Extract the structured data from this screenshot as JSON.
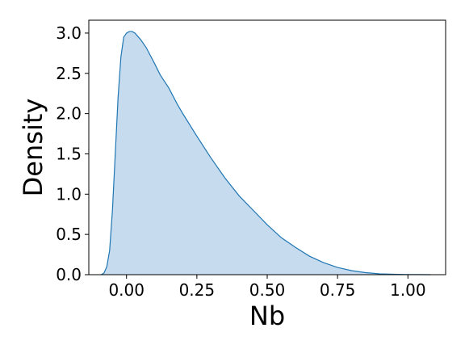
{
  "chart_data": {
    "type": "area",
    "title": "",
    "xlabel": "Nb",
    "ylabel": "Density",
    "xlim": [
      -0.134,
      1.134
    ],
    "ylim": [
      0.0,
      3.16
    ],
    "xticks": [
      0.0,
      0.25,
      0.5,
      0.75,
      1.0
    ],
    "xtick_labels": [
      "0.00",
      "0.25",
      "0.50",
      "0.75",
      "1.00"
    ],
    "yticks": [
      0.0,
      0.5,
      1.0,
      1.5,
      2.0,
      2.5,
      3.0
    ],
    "ytick_labels": [
      "0.0",
      "0.5",
      "1.0",
      "1.5",
      "2.0",
      "2.5",
      "3.0"
    ],
    "grid": false,
    "legend": "none",
    "colors": {
      "line": "#1f77b4",
      "fill": "#c6dbee",
      "axes": "#000000"
    },
    "series": [
      {
        "x": [
          -0.09,
          -0.08,
          -0.07,
          -0.06,
          -0.05,
          -0.04,
          -0.03,
          -0.02,
          -0.01,
          0.0,
          0.01,
          0.02,
          0.03,
          0.04,
          0.05,
          0.07,
          0.1,
          0.12,
          0.15,
          0.18,
          0.2,
          0.25,
          0.3,
          0.35,
          0.4,
          0.45,
          0.5,
          0.55,
          0.6,
          0.65,
          0.7,
          0.75,
          0.8,
          0.85,
          0.9,
          0.95,
          1.0,
          1.04,
          1.08
        ],
        "y": [
          0.0,
          0.02,
          0.1,
          0.3,
          0.8,
          1.5,
          2.2,
          2.7,
          2.95,
          3.0,
          3.02,
          3.02,
          3.0,
          2.96,
          2.92,
          2.82,
          2.62,
          2.48,
          2.32,
          2.12,
          2.0,
          1.72,
          1.45,
          1.2,
          0.98,
          0.8,
          0.62,
          0.46,
          0.34,
          0.23,
          0.15,
          0.09,
          0.05,
          0.025,
          0.01,
          0.005,
          0.002,
          0.001,
          0.0
        ]
      }
    ]
  }
}
